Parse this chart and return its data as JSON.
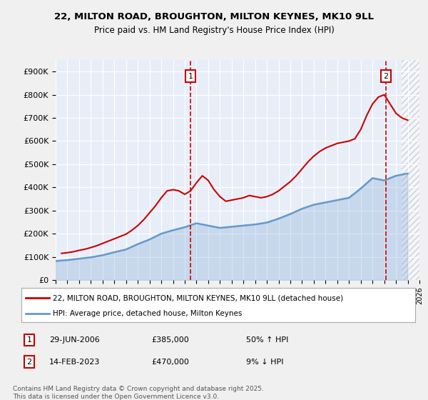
{
  "title_line1": "22, MILTON ROAD, BROUGHTON, MILTON KEYNES, MK10 9LL",
  "title_line2": "Price paid vs. HM Land Registry's House Price Index (HPI)",
  "xlabel": "",
  "ylabel": "",
  "background_color": "#e8eef8",
  "plot_bg_color": "#e8eef8",
  "hatch_color": "#cccccc",
  "grid_color": "#ffffff",
  "red_color": "#cc0000",
  "blue_color": "#6699cc",
  "legend_label_red": "22, MILTON ROAD, BROUGHTON, MILTON KEYNES, MK10 9LL (detached house)",
  "legend_label_blue": "HPI: Average price, detached house, Milton Keynes",
  "annotation1_label": "1",
  "annotation1_date": "29-JUN-2006",
  "annotation1_price": "£385,000",
  "annotation1_hpi": "50% ↑ HPI",
  "annotation2_label": "2",
  "annotation2_date": "14-FEB-2023",
  "annotation2_price": "£470,000",
  "annotation2_hpi": "9% ↓ HPI",
  "footer": "Contains HM Land Registry data © Crown copyright and database right 2025.\nThis data is licensed under the Open Government Licence v3.0.",
  "ylim": [
    0,
    950000
  ],
  "xlim_start": 1995,
  "xlim_end": 2026,
  "sale1_year": 2006.49,
  "sale1_price": 385000,
  "sale2_year": 2023.12,
  "sale2_price": 470000,
  "hpi_years": [
    1995,
    1996,
    1997,
    1998,
    1999,
    2000,
    2001,
    2002,
    2003,
    2004,
    2005,
    2006,
    2007,
    2008,
    2009,
    2010,
    2011,
    2012,
    2013,
    2014,
    2015,
    2016,
    2017,
    2018,
    2019,
    2020,
    2021,
    2022,
    2023,
    2024,
    2025
  ],
  "hpi_values": [
    82000,
    86000,
    92000,
    98000,
    107000,
    120000,
    132000,
    155000,
    175000,
    200000,
    215000,
    228000,
    245000,
    235000,
    225000,
    230000,
    235000,
    240000,
    248000,
    265000,
    285000,
    308000,
    325000,
    335000,
    345000,
    355000,
    395000,
    440000,
    430000,
    450000,
    460000
  ],
  "price_years": [
    1995.5,
    1996,
    1996.5,
    1997,
    1997.5,
    1998,
    1998.5,
    1999,
    1999.5,
    2000,
    2000.5,
    2001,
    2001.5,
    2002,
    2002.5,
    2003,
    2003.5,
    2004,
    2004.5,
    2005,
    2005.5,
    2006,
    2006.5,
    2007,
    2007.5,
    2008,
    2008.5,
    2009,
    2009.5,
    2010,
    2010.5,
    2011,
    2011.5,
    2012,
    2012.5,
    2013,
    2013.5,
    2014,
    2014.5,
    2015,
    2015.5,
    2016,
    2016.5,
    2017,
    2017.5,
    2018,
    2018.5,
    2019,
    2019.5,
    2020,
    2020.5,
    2021,
    2021.5,
    2022,
    2022.5,
    2023,
    2023.5,
    2024,
    2024.5,
    2025
  ],
  "price_values": [
    115000,
    118000,
    122000,
    128000,
    133000,
    140000,
    148000,
    158000,
    168000,
    178000,
    188000,
    198000,
    215000,
    235000,
    260000,
    290000,
    320000,
    355000,
    385000,
    390000,
    385000,
    370000,
    385000,
    420000,
    450000,
    430000,
    390000,
    360000,
    340000,
    345000,
    350000,
    355000,
    365000,
    360000,
    355000,
    360000,
    370000,
    385000,
    405000,
    425000,
    450000,
    480000,
    510000,
    535000,
    555000,
    570000,
    580000,
    590000,
    595000,
    600000,
    610000,
    650000,
    710000,
    760000,
    790000,
    800000,
    760000,
    720000,
    700000,
    690000
  ]
}
